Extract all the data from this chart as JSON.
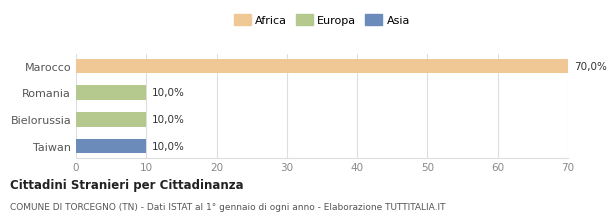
{
  "categories": [
    "Marocco",
    "Romania",
    "Bielorussia",
    "Taiwan"
  ],
  "values": [
    70.0,
    10.0,
    10.0,
    10.0
  ],
  "bar_colors": [
    "#f0c896",
    "#b5c98e",
    "#b5c98e",
    "#6b8cba"
  ],
  "bar_labels": [
    "70,0%",
    "10,0%",
    "10,0%",
    "10,0%"
  ],
  "xlim": [
    0,
    70
  ],
  "xticks": [
    0,
    10,
    20,
    30,
    40,
    50,
    60,
    70
  ],
  "legend_labels": [
    "Africa",
    "Europa",
    "Asia"
  ],
  "legend_colors": [
    "#f0c896",
    "#b5c98e",
    "#6b8cba"
  ],
  "title_bold": "Cittadini Stranieri per Cittadinanza",
  "subtitle": "COMUNE DI TORCEGNO (TN) - Dati ISTAT al 1° gennaio di ogni anno - Elaborazione TUTTITALIA.IT",
  "background_color": "#ffffff",
  "grid_color": "#dddddd"
}
